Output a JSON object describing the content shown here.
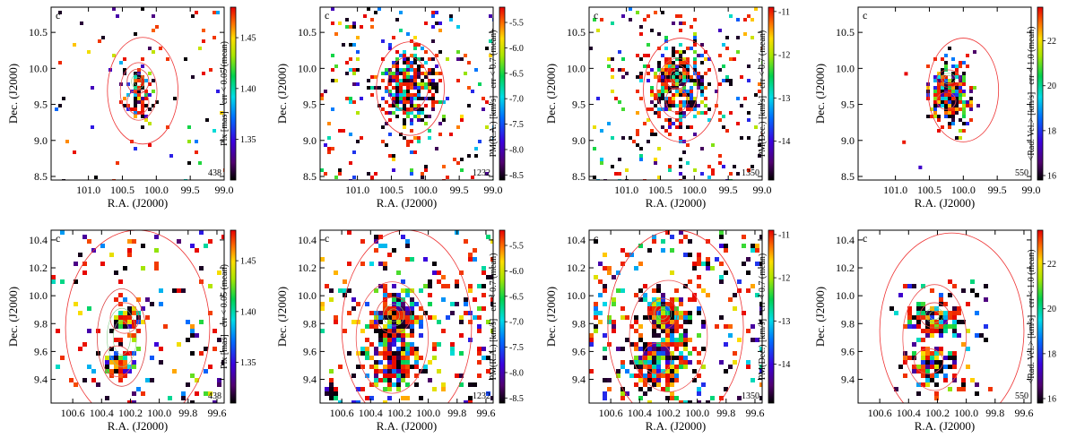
{
  "figure": {
    "description_count": 8
  },
  "chart_data": [
    {
      "type": "scatter",
      "row": 0,
      "col": 0,
      "panel_label": "c",
      "count": "438",
      "xlabel": "R.A. (J2000)",
      "ylabel": "Dec. (J2000)",
      "xlim": [
        101.55,
        99.0
      ],
      "ylim": [
        8.45,
        10.85
      ],
      "xticks": [
        101.0,
        100.5,
        100.0,
        99.5,
        99.0
      ],
      "xtick_labels": [
        "101.0",
        "100.5",
        "100.0",
        "99.5",
        "99.0"
      ],
      "yticks": [
        8.5,
        9.0,
        9.5,
        10.0,
        10.5
      ],
      "ytick_labels": [
        "8.5",
        "9.0",
        "9.5",
        "10.0",
        "10.5"
      ],
      "colorbar": {
        "label": "Plx [mas] −err < 0.05 (mean)",
        "range": [
          1.31,
          1.48
        ],
        "ticks": [
          1.35,
          1.4,
          1.45
        ],
        "tick_labels": [
          "1.35",
          "1.40",
          "1.45"
        ]
      },
      "n_points": 170,
      "seed": 11,
      "clusters": [
        {
          "x": 100.27,
          "y": 9.82,
          "sx": 0.09,
          "sy": 0.1,
          "w": 0.28
        },
        {
          "x": 100.27,
          "y": 9.53,
          "sx": 0.09,
          "sy": 0.1,
          "w": 0.28
        }
      ],
      "contours": [
        {
          "x": 100.2,
          "y": 9.69,
          "rx": 0.52,
          "ry": 0.74
        },
        {
          "x": 100.27,
          "y": 9.82,
          "rx": 0.16,
          "ry": 0.17
        },
        {
          "x": 100.27,
          "y": 9.53,
          "rx": 0.16,
          "ry": 0.17
        },
        {
          "x": 100.26,
          "y": 9.68,
          "rx": 0.27,
          "ry": 0.4
        }
      ]
    },
    {
      "type": "scatter",
      "row": 0,
      "col": 1,
      "panel_label": "c",
      "count": "1232",
      "xlabel": "R.A. (J2000)",
      "ylabel": "Dec. (J2000)",
      "xlim": [
        101.55,
        99.0
      ],
      "ylim": [
        8.45,
        10.85
      ],
      "xticks": [
        101.0,
        100.5,
        100.0,
        99.5,
        99.0
      ],
      "xtick_labels": [
        "101.0",
        "100.5",
        "100.0",
        "99.5",
        "99.0"
      ],
      "yticks": [
        8.5,
        9.0,
        9.5,
        10.0,
        10.5
      ],
      "ytick_labels": [
        "8.5",
        "9.0",
        "9.5",
        "10.0",
        "10.5"
      ],
      "colorbar": {
        "label": "PM(R.A.) [km/s] −err < 0.7 (mean)",
        "range": [
          -8.6,
          -5.2
        ],
        "ticks": [
          -8.5,
          -8.0,
          -7.5,
          -7.0,
          -6.5,
          -6.0,
          -5.5
        ],
        "tick_labels": [
          "-8.5",
          "-8.0",
          "-7.5",
          "-7.0",
          "-6.5",
          "-6.0",
          "-5.5"
        ]
      },
      "n_points": 520,
      "seed": 23,
      "clusters": [
        {
          "x": 100.25,
          "y": 9.75,
          "sx": 0.2,
          "sy": 0.25,
          "w": 0.6
        }
      ],
      "contours": [
        {
          "x": 100.22,
          "y": 9.72,
          "rx": 0.5,
          "ry": 0.65
        },
        {
          "x": 100.25,
          "y": 9.78,
          "rx": 0.3,
          "ry": 0.38
        }
      ]
    },
    {
      "type": "scatter",
      "row": 0,
      "col": 2,
      "panel_label": "c",
      "count": "1350",
      "xlabel": "R.A. (J2000)",
      "ylabel": "Dec. (J2000)",
      "xlim": [
        101.55,
        99.0
      ],
      "ylim": [
        8.45,
        10.85
      ],
      "xticks": [
        101.0,
        100.5,
        100.0,
        99.5,
        99.0
      ],
      "xtick_labels": [
        "101.0",
        "100.5",
        "100.0",
        "99.5",
        "99.0"
      ],
      "yticks": [
        8.5,
        9.0,
        9.5,
        10.0,
        10.5
      ],
      "ytick_labels": [
        "8.5",
        "9.0",
        "9.5",
        "10.0",
        "10.5"
      ],
      "colorbar": {
        "label": "PM(Dec.) [km/s] −err < 0.7 (mean)",
        "range": [
          -14.9,
          -10.9
        ],
        "ticks": [
          -14,
          -13,
          -12,
          -11
        ],
        "tick_labels": [
          "-14",
          "-13",
          "-12",
          "-11"
        ]
      },
      "n_points": 540,
      "seed": 37,
      "clusters": [
        {
          "x": 100.25,
          "y": 9.75,
          "sx": 0.22,
          "sy": 0.28,
          "w": 0.6
        }
      ],
      "contours": [
        {
          "x": 100.2,
          "y": 9.7,
          "rx": 0.55,
          "ry": 0.72
        },
        {
          "x": 100.26,
          "y": 9.88,
          "rx": 0.16,
          "ry": 0.17
        },
        {
          "x": 100.26,
          "y": 9.56,
          "rx": 0.16,
          "ry": 0.17
        },
        {
          "x": 100.25,
          "y": 9.72,
          "rx": 0.3,
          "ry": 0.42
        }
      ]
    },
    {
      "type": "scatter",
      "row": 0,
      "col": 3,
      "panel_label": "c",
      "count": "550",
      "xlabel": "R.A. (J2000)",
      "ylabel": "Dec. (J2000)",
      "xlim": [
        101.55,
        99.0
      ],
      "ylim": [
        8.45,
        10.85
      ],
      "xticks": [
        101.0,
        100.5,
        100.0,
        99.5,
        99.0
      ],
      "xtick_labels": [
        "101.0",
        "100.5",
        "100.0",
        "99.5",
        "99.0"
      ],
      "yticks": [
        8.5,
        9.0,
        9.5,
        10.0,
        10.5
      ],
      "ytick_labels": [
        "8.5",
        "9.0",
        "9.5",
        "10.0",
        "10.5"
      ],
      "colorbar": {
        "label": "<Rad. Vel.> [km/s] −err < 1.0 (mean)",
        "range": [
          15.8,
          23.5
        ],
        "ticks": [
          16,
          18,
          20,
          22
        ],
        "tick_labels": [
          "16",
          "18",
          "20",
          "22"
        ]
      },
      "n_points": 260,
      "seed": 41,
      "clusters": [
        {
          "x": 100.22,
          "y": 9.66,
          "sx": 0.15,
          "sy": 0.22,
          "w": 0.97
        }
      ],
      "box": {
        "x0": 99.9,
        "x1": 100.55,
        "y0": 9.05,
        "y1": 10.2
      },
      "contours": [
        {
          "x": 100.0,
          "y": 9.7,
          "rx": 0.52,
          "ry": 0.72
        },
        {
          "x": 100.22,
          "y": 9.86,
          "rx": 0.17,
          "ry": 0.12
        },
        {
          "x": 100.25,
          "y": 9.55,
          "rx": 0.14,
          "ry": 0.12
        }
      ],
      "extra_points": [
        {
          "x": 100.9,
          "y": 9.0
        },
        {
          "x": 100.87,
          "y": 9.95
        },
        {
          "x": 100.66,
          "y": 8.65
        }
      ]
    },
    {
      "type": "scatter",
      "row": 1,
      "col": 0,
      "panel_label": "c",
      "count": "438",
      "xlabel": "R.A. (J2000)",
      "ylabel": "Dec. (J2000)",
      "xlim": [
        100.75,
        99.55
      ],
      "ylim": [
        9.23,
        10.47
      ],
      "xticks": [
        100.6,
        100.4,
        100.2,
        100.0,
        99.8,
        99.6
      ],
      "xtick_labels": [
        "100.6",
        "100.4",
        "100.2",
        "100.0",
        "99.8",
        "99.6"
      ],
      "yticks": [
        9.4,
        9.6,
        9.8,
        10.0,
        10.2,
        10.4
      ],
      "ytick_labels": [
        "9.4",
        "9.6",
        "9.8",
        "10.0",
        "10.2",
        "10.4"
      ],
      "colorbar": {
        "label": "Plx [mas] −err < 0.05 (mean)",
        "range": [
          1.31,
          1.48
        ],
        "ticks": [
          1.35,
          1.4,
          1.45
        ],
        "tick_labels": [
          "1.35",
          "1.40",
          "1.45"
        ]
      },
      "n_points": 220,
      "seed": 53,
      "clusters": [
        {
          "x": 100.24,
          "y": 9.84,
          "sx": 0.05,
          "sy": 0.05,
          "w": 0.22
        },
        {
          "x": 100.29,
          "y": 9.53,
          "sx": 0.05,
          "sy": 0.05,
          "w": 0.22
        }
      ],
      "contours": [
        {
          "x": 100.15,
          "y": 9.77,
          "rx": 0.5,
          "ry": 0.7
        },
        {
          "x": 100.26,
          "y": 9.7,
          "rx": 0.17,
          "ry": 0.35
        },
        {
          "x": 100.24,
          "y": 9.84,
          "rx": 0.1,
          "ry": 0.11
        },
        {
          "x": 100.29,
          "y": 9.53,
          "rx": 0.1,
          "ry": 0.11
        }
      ]
    },
    {
      "type": "scatter",
      "row": 1,
      "col": 1,
      "panel_label": "c",
      "count": "1232",
      "xlabel": "R.A. (J2000)",
      "ylabel": "Dec. (J2000)",
      "xlim": [
        100.75,
        99.55
      ],
      "ylim": [
        9.23,
        10.47
      ],
      "xticks": [
        100.6,
        100.4,
        100.2,
        100.0,
        99.8,
        99.6
      ],
      "xtick_labels": [
        "100.6",
        "100.4",
        "100.2",
        "100.0",
        "99.8",
        "99.6"
      ],
      "yticks": [
        9.4,
        9.6,
        9.8,
        10.0,
        10.2,
        10.4
      ],
      "ytick_labels": [
        "9.4",
        "9.6",
        "9.8",
        "10.0",
        "10.2",
        "10.4"
      ],
      "colorbar": {
        "label": "PM(R.A.) [km/s] −err < 0.7 (mean)",
        "range": [
          -8.6,
          -5.2
        ],
        "ticks": [
          -8.5,
          -8.0,
          -7.5,
          -7.0,
          -6.5,
          -6.0,
          -5.5
        ],
        "tick_labels": [
          "-8.5",
          "-8.0",
          "-7.5",
          "-7.0",
          "-6.5",
          "-6.0",
          "-5.5"
        ]
      },
      "n_points": 620,
      "seed": 67,
      "clusters": [
        {
          "x": 100.24,
          "y": 9.86,
          "sx": 0.08,
          "sy": 0.08,
          "w": 0.28
        },
        {
          "x": 100.27,
          "y": 9.53,
          "sx": 0.09,
          "sy": 0.09,
          "w": 0.3
        }
      ],
      "contours": [
        {
          "x": 100.15,
          "y": 9.77,
          "rx": 0.45,
          "ry": 0.7
        },
        {
          "x": 100.24,
          "y": 9.86,
          "rx": 0.12,
          "ry": 0.13
        },
        {
          "x": 100.25,
          "y": 9.7,
          "rx": 0.25,
          "ry": 0.4
        }
      ]
    },
    {
      "type": "scatter",
      "row": 1,
      "col": 2,
      "panel_label": "c",
      "count": "1350",
      "xlabel": "R.A. (J2000)",
      "ylabel": "Dec. (J2000)",
      "xlim": [
        100.75,
        99.55
      ],
      "ylim": [
        9.23,
        10.47
      ],
      "xticks": [
        100.6,
        100.4,
        100.2,
        100.0,
        99.8,
        99.6
      ],
      "xtick_labels": [
        "100.6",
        "100.4",
        "100.2",
        "100.0",
        "99.8",
        "99.6"
      ],
      "yticks": [
        9.4,
        9.6,
        9.8,
        10.0,
        10.2,
        10.4
      ],
      "ytick_labels": [
        "9.4",
        "9.6",
        "9.8",
        "10.0",
        "10.2",
        "10.4"
      ],
      "colorbar": {
        "label": "PM(Dec.) [km/s] −err < 0.7 (mean)",
        "range": [
          -14.9,
          -10.9
        ],
        "ticks": [
          -14,
          -13,
          -12,
          -11
        ],
        "tick_labels": [
          "-14",
          "-13",
          "-12",
          "-11"
        ]
      },
      "n_points": 640,
      "seed": 79,
      "clusters": [
        {
          "x": 100.24,
          "y": 9.87,
          "sx": 0.08,
          "sy": 0.08,
          "w": 0.3
        },
        {
          "x": 100.28,
          "y": 9.55,
          "sx": 0.09,
          "sy": 0.09,
          "w": 0.3
        }
      ],
      "contours": [
        {
          "x": 100.15,
          "y": 9.77,
          "rx": 0.47,
          "ry": 0.7
        },
        {
          "x": 100.24,
          "y": 9.87,
          "rx": 0.1,
          "ry": 0.11
        },
        {
          "x": 100.28,
          "y": 9.55,
          "rx": 0.1,
          "ry": 0.11
        },
        {
          "x": 100.2,
          "y": 9.71,
          "rx": 0.27,
          "ry": 0.4
        }
      ]
    },
    {
      "type": "scatter",
      "row": 1,
      "col": 3,
      "panel_label": "c",
      "count": "550",
      "xlabel": "R.A. (J2000)",
      "ylabel": "Dec. (J2000)",
      "xlim": [
        100.75,
        99.55
      ],
      "ylim": [
        9.23,
        10.47
      ],
      "xticks": [
        100.6,
        100.4,
        100.2,
        100.0,
        99.8,
        99.6
      ],
      "xtick_labels": [
        "100.6",
        "100.4",
        "100.2",
        "100.0",
        "99.8",
        "99.6"
      ],
      "yticks": [
        9.4,
        9.6,
        9.8,
        10.0,
        10.2,
        10.4
      ],
      "ytick_labels": [
        "9.4",
        "9.6",
        "9.8",
        "10.0",
        "10.2",
        "10.4"
      ],
      "colorbar": {
        "label": "<Rad. Vel.> [km/s] −err < 1.0 (mean)",
        "range": [
          15.8,
          23.5
        ],
        "ticks": [
          16,
          18,
          20,
          22
        ],
        "tick_labels": [
          "16",
          "18",
          "20",
          "22"
        ]
      },
      "n_points": 300,
      "seed": 97,
      "clusters": [
        {
          "x": 100.22,
          "y": 9.86,
          "sx": 0.07,
          "sy": 0.06,
          "w": 0.35
        },
        {
          "x": 100.26,
          "y": 9.53,
          "sx": 0.07,
          "sy": 0.07,
          "w": 0.35
        }
      ],
      "box": {
        "x0": 99.84,
        "x1": 100.52,
        "y0": 9.3,
        "y1": 10.12
      },
      "contours": [
        {
          "x": 100.1,
          "y": 9.75,
          "rx": 0.5,
          "ry": 0.7
        },
        {
          "x": 100.22,
          "y": 9.86,
          "rx": 0.1,
          "ry": 0.09
        },
        {
          "x": 100.26,
          "y": 9.53,
          "rx": 0.1,
          "ry": 0.09
        },
        {
          "x": 100.22,
          "y": 9.7,
          "rx": 0.22,
          "ry": 0.38
        }
      ]
    }
  ]
}
